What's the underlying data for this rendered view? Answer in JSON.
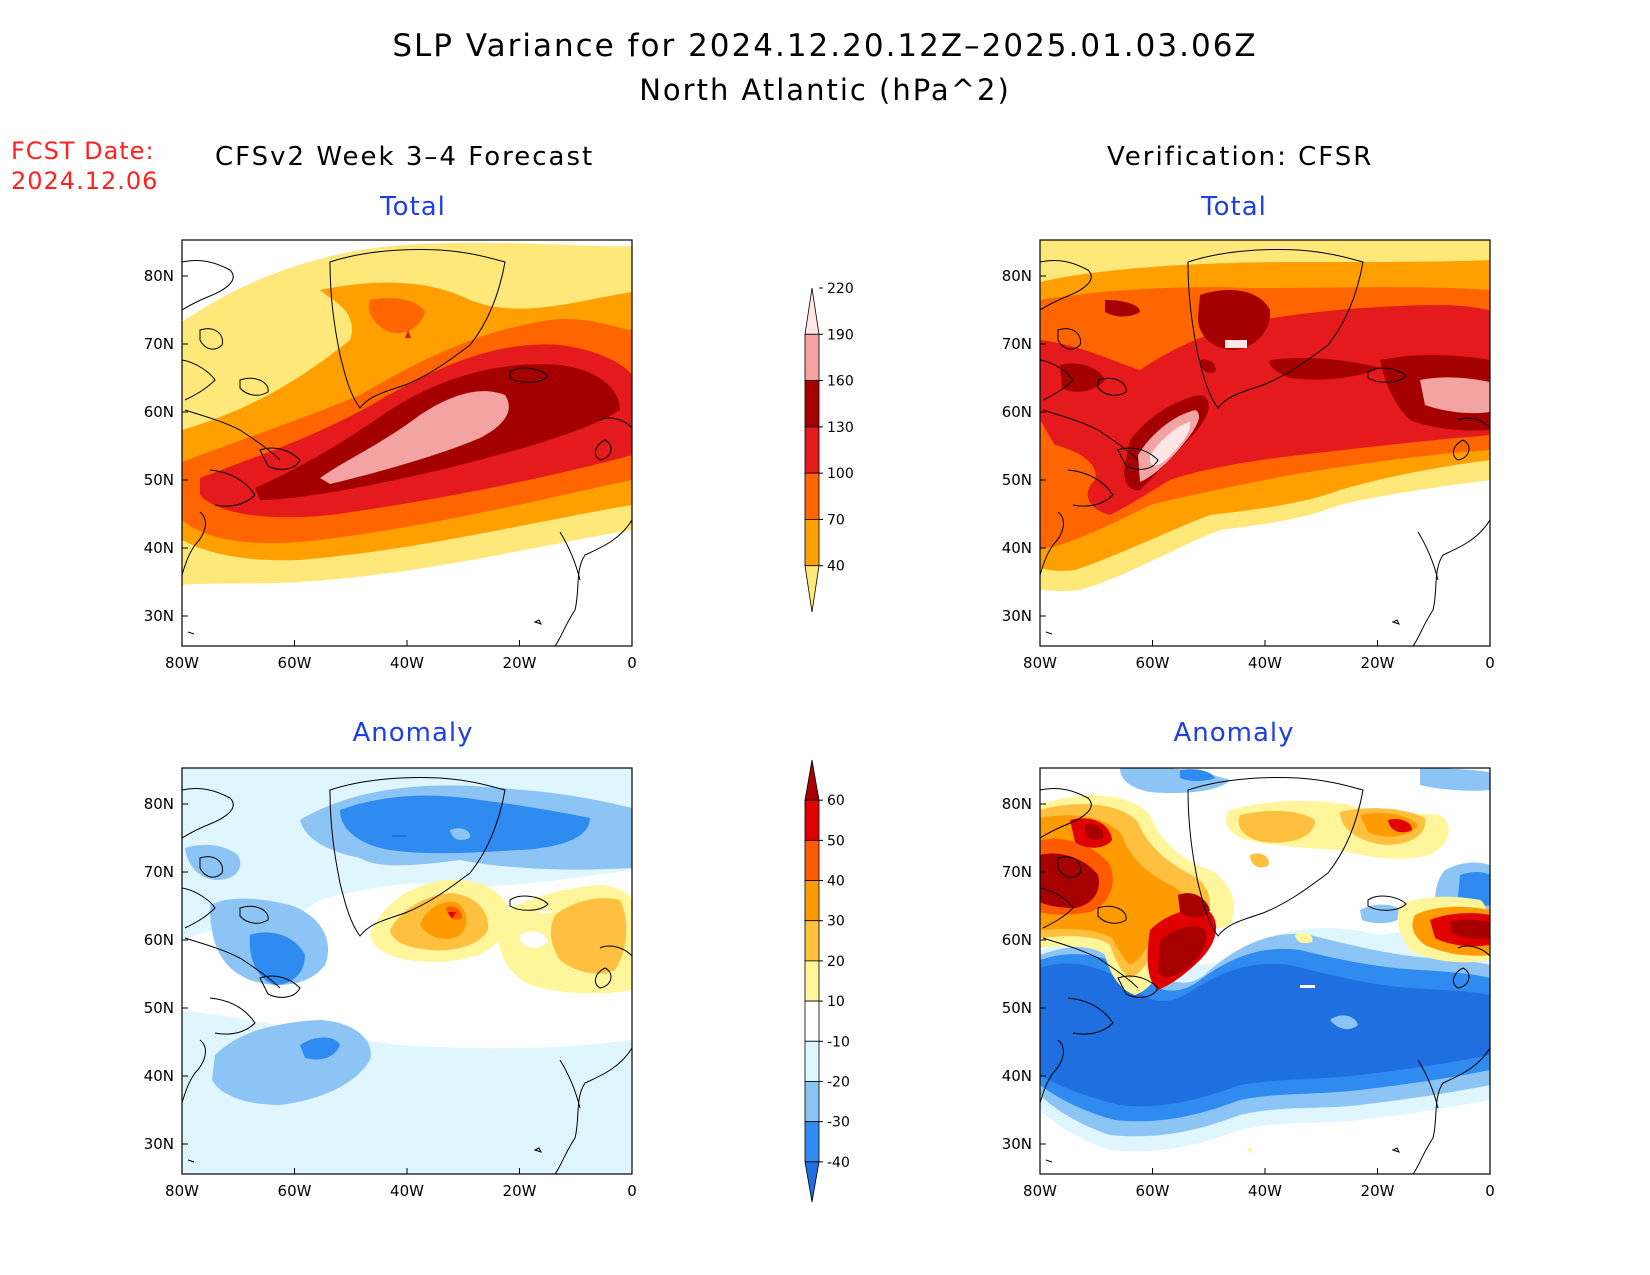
{
  "header": {
    "title_line1": "SLP Variance for 2024.12.20.12Z–2025.01.03.06Z",
    "title_line2": "North Atlantic (hPa^2)",
    "fcst_label": "FCST Date:",
    "fcst_date": "2024.12.06"
  },
  "columns": {
    "left": "CFSv2 Week 3–4 Forecast",
    "right": "Verification: CFSR"
  },
  "panels": [
    {
      "id": "fcst-total",
      "title": "Total"
    },
    {
      "id": "verif-total",
      "title": "Total"
    },
    {
      "id": "fcst-anomaly",
      "title": "Anomaly"
    },
    {
      "id": "verif-anomaly",
      "title": "Anomaly"
    }
  ],
  "axes": {
    "lat_ticks": [
      "80N",
      "70N",
      "60N",
      "50N",
      "40N",
      "30N"
    ],
    "lon_ticks": [
      "80W",
      "60W",
      "40W",
      "20W",
      "0"
    ]
  },
  "colorbars": {
    "total": {
      "levels": [
        "40",
        "70",
        "100",
        "130",
        "160",
        "190",
        "220"
      ],
      "colors": [
        "#ffe87a",
        "#ffa000",
        "#ff6600",
        "#e41a1c",
        "#a50000",
        "#f4a3a3",
        "#ffe6e6"
      ]
    },
    "anomaly": {
      "levels": [
        "-40",
        "-30",
        "-20",
        "-10",
        "10",
        "20",
        "30",
        "40",
        "50",
        "60"
      ],
      "colors": [
        "#1f6fe0",
        "#2f8bf0",
        "#8cc4f5",
        "#dff6ff",
        "#ffffff",
        "#fff59a",
        "#ffc040",
        "#ff9a00",
        "#ff5a00",
        "#e00000",
        "#a80000"
      ]
    }
  }
}
